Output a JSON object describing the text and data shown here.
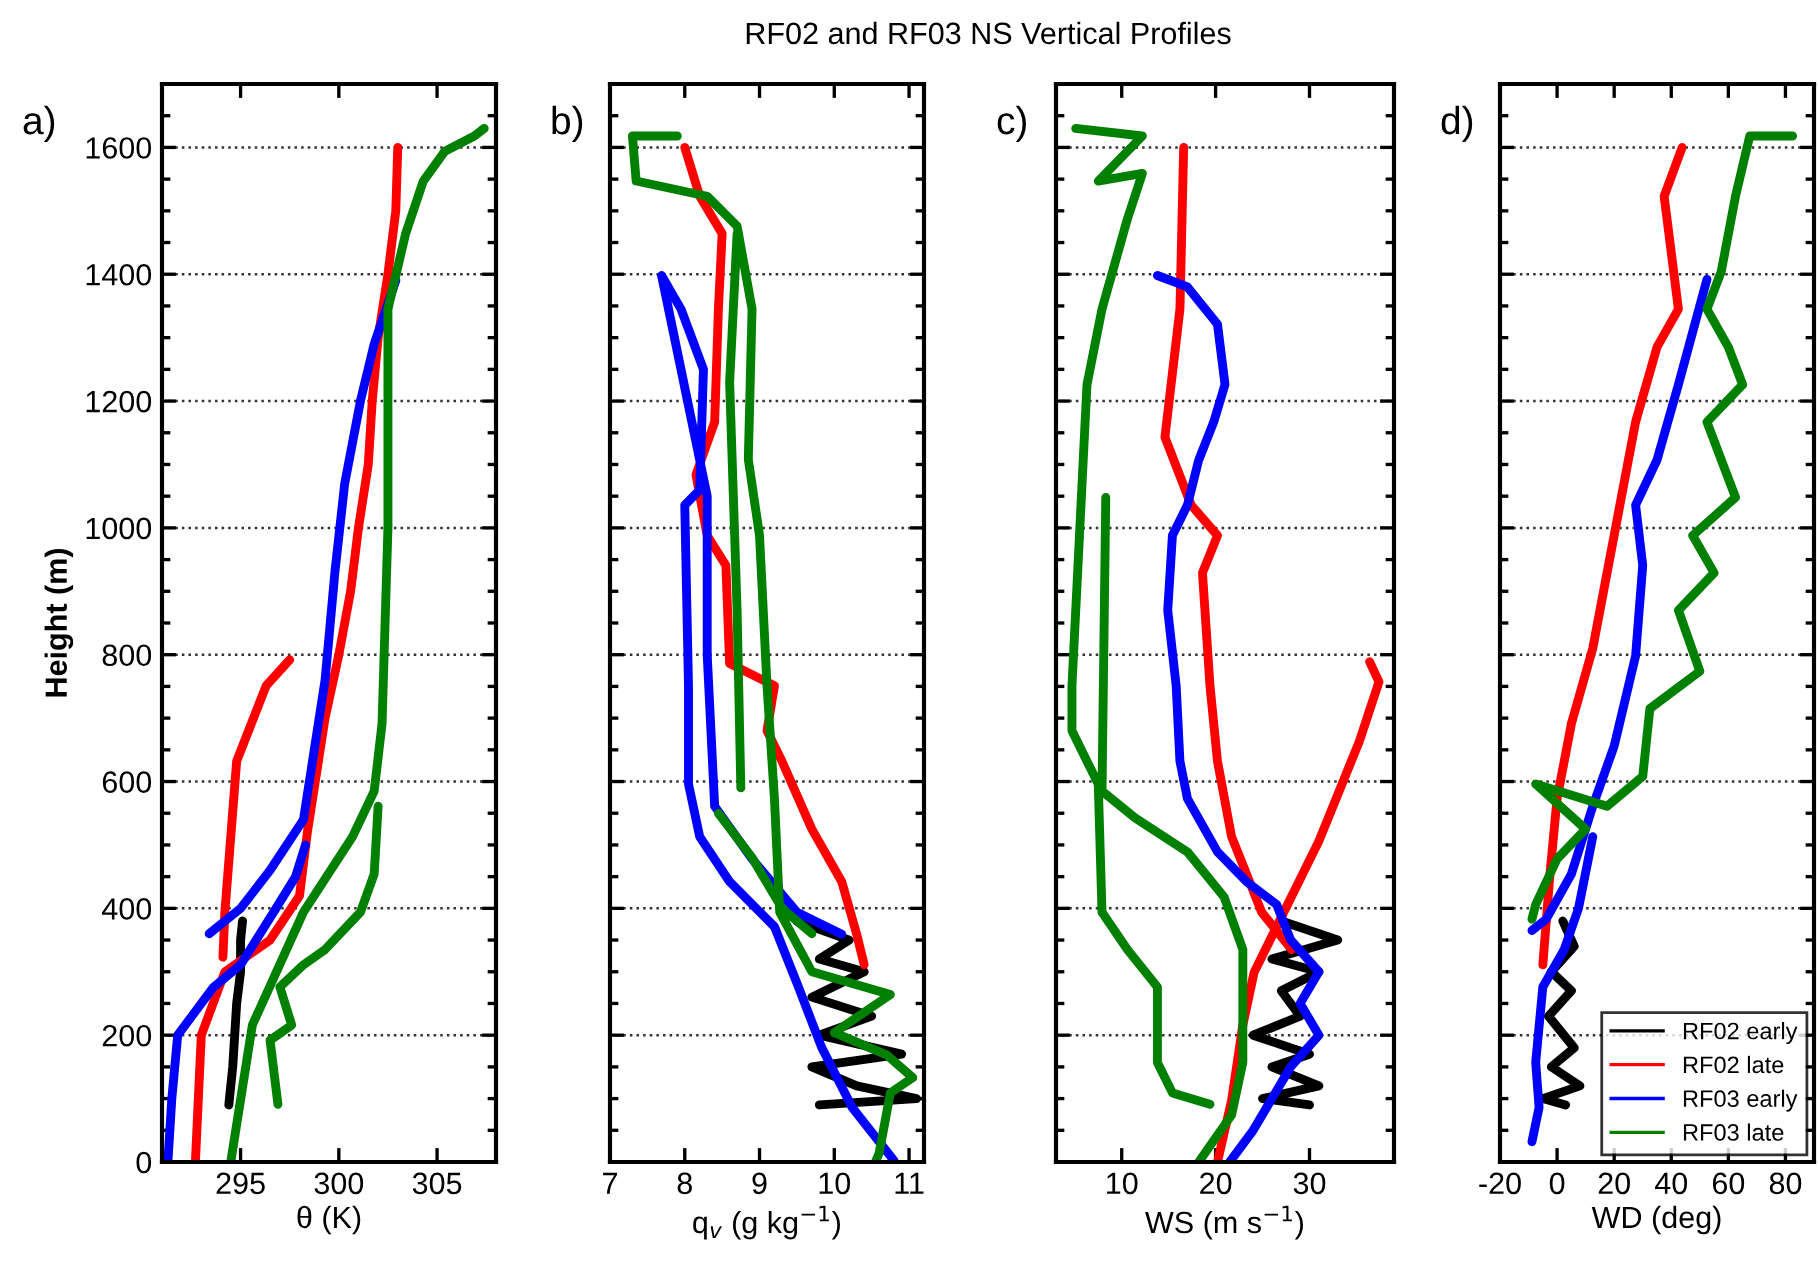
{
  "chart_data": [
    {
      "type": "line",
      "annotations": [
        "a)"
      ],
      "xlabel": "θ (K)",
      "ylabel": "Height (m)",
      "xlim": [
        291,
        308
      ],
      "xticks": [
        295,
        300,
        305
      ],
      "ylim": [
        0,
        1700
      ],
      "yticks": [
        0,
        200,
        400,
        600,
        800,
        1000,
        1200,
        1400,
        1600
      ],
      "grid": "y",
      "line_style": "solid",
      "series": [
        {
          "color": "#000000",
          "x": [
            294.4,
            294.6,
            294.8,
            295,
            295,
            295.1
          ],
          "values": [
            90,
            150,
            250,
            300,
            350,
            380
          ]
        },
        {
          "color": "#ff0000",
          "x": [
            292.7,
            293,
            294.2,
            296.5,
            298,
            298.4,
            299.3,
            300,
            300.6,
            301,
            301.5,
            301.7,
            302,
            302.5,
            302.9,
            303,
            null,
            297.5,
            296.3,
            294.8,
            294.5,
            294.2,
            294.1
          ],
          "values": [
            0,
            200,
            300,
            350,
            420,
            520,
            700,
            800,
            900,
            1000,
            1100,
            1200,
            1300,
            1400,
            1500,
            1600,
            null,
            792,
            751,
            632,
            513,
            394,
            323
          ]
        },
        {
          "color": "#0000ff",
          "x": [
            302.9,
            301.8,
            301.1,
            300.3,
            299.8,
            299.3,
            298.6,
            298.2,
            296.5,
            295,
            293.4,
            null,
            298.3,
            297.8,
            296.8,
            295,
            293.6,
            291.8,
            291.5,
            291.3
          ],
          "values": [
            1390,
            1290,
            1200,
            1070,
            930,
            760,
            620,
            540,
            460,
            400,
            360,
            null,
            500,
            450,
            400,
            311,
            275,
            200,
            100,
            0
          ]
        },
        {
          "color": "#008000",
          "x": [
            294.5,
            295.6,
            298.2,
            300.7,
            301.8,
            302.2,
            302.5,
            302.5,
            303.4,
            304.3,
            305.4,
            306.9,
            307.4,
            null,
            296.9,
            296.5,
            297.6,
            297,
            298.2,
            299.3,
            301.1,
            301.8,
            302
          ],
          "values": [
            0,
            216,
            394,
            513,
            585,
            691,
            1000,
            1345,
            1464,
            1547,
            1594,
            1618,
            1630,
            null,
            91,
            192,
            216,
            276,
            311,
            335,
            394,
            454,
            561
          ]
        }
      ]
    },
    {
      "type": "line",
      "title": "RF02 and RF03 NS Vertical Profiles",
      "annotations": [
        "b)"
      ],
      "xlabel": "q$_{v}$ (g kg$^{−1}$)",
      "xlim": [
        7,
        11.2
      ],
      "xticks": [
        7,
        8,
        9,
        10,
        11
      ],
      "ylim": [
        0,
        1700
      ],
      "yticks": [
        0,
        200,
        400,
        600,
        800,
        1000,
        1200,
        1400,
        1600
      ],
      "grid": "y",
      "tick_labels": "x",
      "line_style": "solid",
      "series": [
        {
          "color": "#000000",
          "x": [
            9.5,
            10.2,
            9.8,
            10.4,
            9.7,
            10.5,
            9.8,
            10.9,
            9.7,
            10.3,
            11.1,
            9.8
          ],
          "values": [
            380,
            350,
            320,
            300,
            260,
            230,
            200,
            170,
            150,
            120,
            100,
            90
          ]
        },
        {
          "color": "#ff0000",
          "x": [
            8.0,
            8.2,
            8.5,
            8.45,
            8.4,
            8.15,
            8.3,
            8.55,
            8.6,
            9.2,
            9.1,
            9.3,
            9.7,
            10.1,
            10.3,
            10.4
          ],
          "values": [
            1600,
            1523,
            1464,
            1345,
            1167,
            1084,
            988,
            941,
            786,
            751,
            680,
            632,
            525,
            442,
            359,
            311
          ]
        },
        {
          "color": "#0000ff",
          "x": [
            10.1,
            9.5,
            8.9,
            8.4,
            8.3,
            8.3,
            7.69,
            null,
            7.69,
            7.95,
            8.25,
            8.2,
            8.0,
            8.05,
            8.05,
            8.2,
            8.6,
            9.2,
            9.52,
            9.83,
            10.24,
            10.8
          ],
          "values": [
            359,
            394,
            478,
            561,
            800,
            1050,
            1398,
            null,
            1398,
            1345,
            1250,
            1060,
            1036,
            751,
            596,
            513,
            442,
            371,
            276,
            181,
            86,
            2
          ]
        },
        {
          "color": "#008000",
          "x": [
            7.9,
            7.3,
            7.35,
            8.3,
            8.7,
            8.9,
            8.85,
            9.0,
            9.1,
            9.2,
            9.27,
            9.7,
            10.75,
            10.0,
            10.7,
            11.05,
            10.75,
            10.6,
            10.55,
            null,
            8.7,
            8.6,
            8.7,
            8.75,
            null,
            8.45,
            8.9,
            9.3,
            9.7
          ],
          "values": [
            1618,
            1618,
            1547,
            1523,
            1476,
            1345,
            1108,
            988,
            751,
            572,
            394,
            300,
            264,
            204,
            169,
            133,
            109,
            14,
            0,
            null,
            1464,
            1230,
            870,
            590,
            null,
            550,
            480,
            400,
            360
          ]
        }
      ]
    },
    {
      "type": "line",
      "annotations": [
        "c)"
      ],
      "xlabel": "WS (m s$^{−1}$)",
      "xlim": [
        3,
        39
      ],
      "xticks": [
        10,
        20,
        30
      ],
      "ylim": [
        0,
        1700
      ],
      "yticks": [
        0,
        200,
        400,
        600,
        800,
        1000,
        1200,
        1400,
        1600
      ],
      "grid": "y",
      "tick_labels": "x",
      "line_style": "solid",
      "series": [
        {
          "color": "#000000",
          "x": [
            27,
            33,
            26,
            31,
            27,
            29,
            24,
            30,
            26,
            31,
            25,
            30
          ],
          "values": [
            380,
            350,
            320,
            300,
            270,
            230,
            200,
            170,
            150,
            120,
            100,
            90
          ]
        },
        {
          "color": "#ff0000",
          "x": [
            16.6,
            16.2,
            14.6,
            17.4,
            20.2,
            18.6,
            19.4,
            20.2,
            21.7,
            23.3,
            24.9,
            28.1,
            null,
            36.4,
            37.4,
            35.3,
            31,
            26.8,
            24.1,
            22.9,
            21.7,
            20.2
          ],
          "values": [
            1600,
            1345,
            1143,
            1036,
            988,
            929,
            751,
            632,
            513,
            454,
            394,
            335,
            null,
            789,
            757,
            663,
            506,
            380,
            299,
            216,
            97,
            0
          ]
        },
        {
          "color": "#0000ff",
          "x": [
            13.8,
            17,
            20.2,
            21,
            19.8,
            18.2,
            17,
            15.4,
            14.9,
            15.8,
            16.2,
            17,
            20.2,
            23.3,
            26.5,
            28,
            31,
            29,
            31,
            28,
            26,
            24,
            21.5
          ],
          "values": [
            1398,
            1380,
            1321,
            1226,
            1167,
            1107,
            1036,
            988,
            870,
            751,
            632,
            573,
            489,
            442,
            406,
            350,
            300,
            250,
            200,
            150,
            100,
            50,
            0
          ]
        },
        {
          "color": "#008000",
          "x": [
            5.1,
            12.2,
            7.5,
            12.2,
            10.6,
            7.9,
            6.3,
            5.5,
            4.7,
            4.7,
            7.5,
            7.9,
            10.6,
            13.8,
            13.8,
            15.4,
            19.4,
            null,
            18.2,
            21.7,
            22.9,
            22.9,
            20.9,
            17,
            11.4,
            7.9,
            8.3
          ],
          "values": [
            1630,
            1618,
            1547,
            1559,
            1487,
            1345,
            1226,
            988,
            751,
            680,
            596,
            394,
            335,
            276,
            157,
            109,
            91,
            null,
            0,
            74,
            157,
            335,
            418,
            489,
            543,
            585,
            1048
          ]
        }
      ]
    },
    {
      "type": "line",
      "annotations": [
        "d)"
      ],
      "xlabel": "WD (deg)",
      "xlim": [
        -20,
        90
      ],
      "xticks": [
        -20,
        0,
        20,
        40,
        60,
        80
      ],
      "ylim": [
        0,
        1700
      ],
      "yticks": [
        0,
        200,
        400,
        600,
        800,
        1000,
        1200,
        1400,
        1600
      ],
      "grid": "y",
      "tick_labels": "x",
      "legend": "bottom right",
      "line_style": "solid",
      "series": [
        {
          "name": "RF02 early",
          "color": "#000000",
          "x": [
            2,
            6,
            -2,
            5,
            -3,
            6,
            -2,
            8,
            -5,
            3
          ],
          "values": [
            380,
            340,
            300,
            270,
            230,
            180,
            150,
            120,
            100,
            90
          ]
        },
        {
          "name": "RF02 late",
          "color": "#ff0000",
          "x": [
            43.8,
            37.5,
            42.5,
            35,
            27.5,
            22.5,
            17.5,
            12.5,
            5,
            0,
            -2.5,
            -5
          ],
          "values": [
            1600,
            1523,
            1345,
            1285,
            1167,
            1048,
            929,
            810,
            691,
            573,
            454,
            311
          ]
        },
        {
          "name": "RF03 early",
          "color": "#0000ff",
          "x": [
            52.5,
            42.5,
            35,
            27.5,
            30,
            27.5,
            20,
            12.5,
            5,
            -3.8,
            -8.8,
            null,
            12.5,
            7.5,
            2.5,
            -5,
            -7.5,
            -6.3,
            -8.8
          ],
          "values": [
            1392,
            1226,
            1107,
            1036,
            941,
            798,
            656,
            561,
            454,
            383,
            365,
            null,
            513,
            400,
            335,
            276,
            157,
            86,
            32
          ]
        },
        {
          "name": "RF03 late",
          "color": "#008000",
          "x": [
            82.5,
            67.5,
            62.5,
            57.5,
            52.5,
            60,
            65,
            52.5,
            62.5,
            47.5,
            55,
            42.5,
            50,
            32.5,
            30,
            17.5,
            -7.5,
            10,
            0,
            -7.5,
            -8.8
          ],
          "values": [
            1618,
            1618,
            1523,
            1404,
            1345,
            1285,
            1226,
            1167,
            1048,
            988,
            929,
            870,
            774,
            715,
            608,
            561,
            596,
            525,
            478,
            406,
            383
          ]
        }
      ]
    }
  ]
}
